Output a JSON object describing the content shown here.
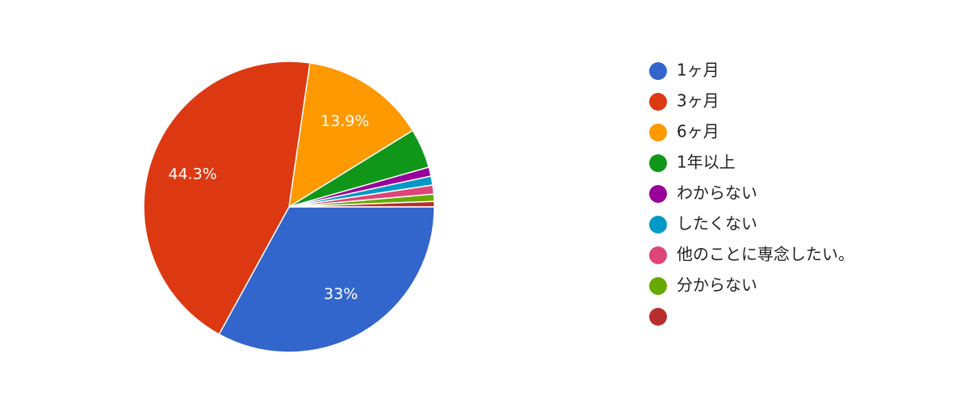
{
  "chart_data": {
    "type": "pie",
    "categories": [
      "1ヶ月",
      "3ヶ月",
      "6ヶ月",
      "1年以上",
      "わからない",
      "したくない",
      "他のことに専念したい。",
      "分からない",
      null
    ],
    "values": [
      33,
      44.3,
      13.9,
      4.4,
      1,
      1,
      1,
      0.8,
      0.6
    ],
    "value_labels": [
      "33%",
      "44.3%",
      "13.9%",
      null,
      null,
      null,
      null,
      null,
      null
    ],
    "colors": [
      "#3366cc",
      "#dc3912",
      "#ff9900",
      "#109618",
      "#990099",
      "#0099c6",
      "#dd4477",
      "#66aa00",
      "#b82e2e"
    ],
    "legend": "right"
  }
}
